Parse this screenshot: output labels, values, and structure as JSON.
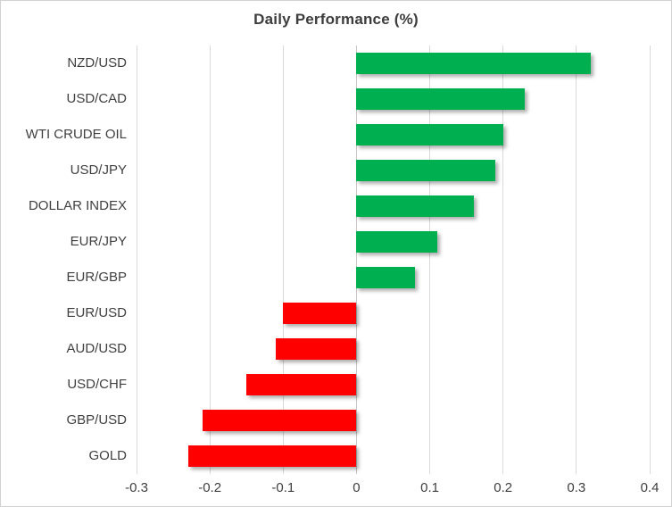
{
  "chart_data": {
    "type": "bar",
    "orientation": "horizontal",
    "title": "Daily Performance (%)",
    "categories": [
      "NZD/USD",
      "USD/CAD",
      "WTI CRUDE OIL",
      "USD/JPY",
      "DOLLAR INDEX",
      "EUR/JPY",
      "EUR/GBP",
      "EUR/USD",
      "AUD/USD",
      "USD/CHF",
      "GBP/USD",
      "GOLD"
    ],
    "values": [
      0.32,
      0.23,
      0.2,
      0.19,
      0.16,
      0.11,
      0.08,
      -0.1,
      -0.11,
      -0.15,
      -0.21,
      -0.23
    ],
    "xlim": [
      -0.3,
      0.4
    ],
    "x_ticks": [
      -0.3,
      -0.2,
      -0.1,
      0,
      0.1,
      0.2,
      0.3,
      0.4
    ],
    "x_tick_labels": [
      "-0.3",
      "-0.2",
      "-0.1",
      "0",
      "0.1",
      "0.2",
      "0.3",
      "0.4"
    ],
    "grid": true,
    "legend": "none",
    "positive_color": "#00b050",
    "negative_color": "#ff0000",
    "gridline_color": "#d9d9d9",
    "title_color": "#3d3d3d",
    "label_color": "#404040"
  }
}
